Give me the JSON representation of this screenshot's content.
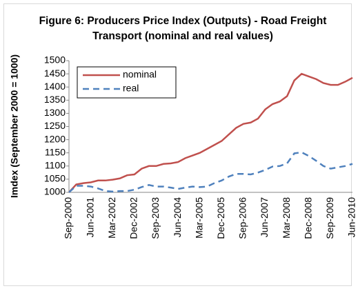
{
  "chart_data": {
    "type": "line",
    "title": "Figure 6: Producers Price Index (Outputs) - Road Freight Transport (nominal and real values)",
    "y_label": "Imdex (September 2000 = 1000)",
    "categories": [
      "Sep-2000",
      null,
      null,
      "Jun-2001",
      null,
      null,
      "Mar-2002",
      null,
      null,
      "Dec-2002",
      null,
      null,
      "Sep-2003",
      null,
      null,
      "Jun-2004",
      null,
      null,
      "Mar-2005",
      null,
      null,
      "Dec-2005",
      null,
      null,
      "Sep-2006",
      null,
      null,
      "Jun-2007",
      null,
      null,
      "Mar-2008",
      null,
      null,
      "Dec-2008",
      null,
      null,
      "Sep-2009",
      null,
      null,
      "Jun-2010"
    ],
    "series": [
      {
        "name": "nominal",
        "color": "#c0504d",
        "dash": false,
        "values": [
          1000,
          1030,
          1035,
          1038,
          1045,
          1045,
          1048,
          1053,
          1065,
          1068,
          1090,
          1100,
          1100,
          1108,
          1110,
          1115,
          1130,
          1140,
          1150,
          1165,
          1180,
          1195,
          1220,
          1245,
          1260,
          1265,
          1280,
          1315,
          1335,
          1345,
          1365,
          1425,
          1450,
          1440,
          1430,
          1415,
          1408,
          1408,
          1420,
          1435
        ]
      },
      {
        "name": "real",
        "color": "#4f81bd",
        "dash": true,
        "values": [
          1000,
          1025,
          1025,
          1022,
          1015,
          1005,
          1003,
          1005,
          1005,
          1010,
          1020,
          1028,
          1022,
          1022,
          1018,
          1013,
          1018,
          1022,
          1020,
          1022,
          1035,
          1045,
          1060,
          1070,
          1070,
          1068,
          1075,
          1085,
          1098,
          1100,
          1110,
          1148,
          1152,
          1138,
          1120,
          1100,
          1090,
          1095,
          1100,
          1108
        ]
      }
    ],
    "ylim": [
      1000,
      1500
    ],
    "yticks": [
      1000,
      1050,
      1100,
      1150,
      1200,
      1250,
      1300,
      1350,
      1400,
      1450,
      1500
    ],
    "grid": false,
    "legend": "upper-left"
  }
}
